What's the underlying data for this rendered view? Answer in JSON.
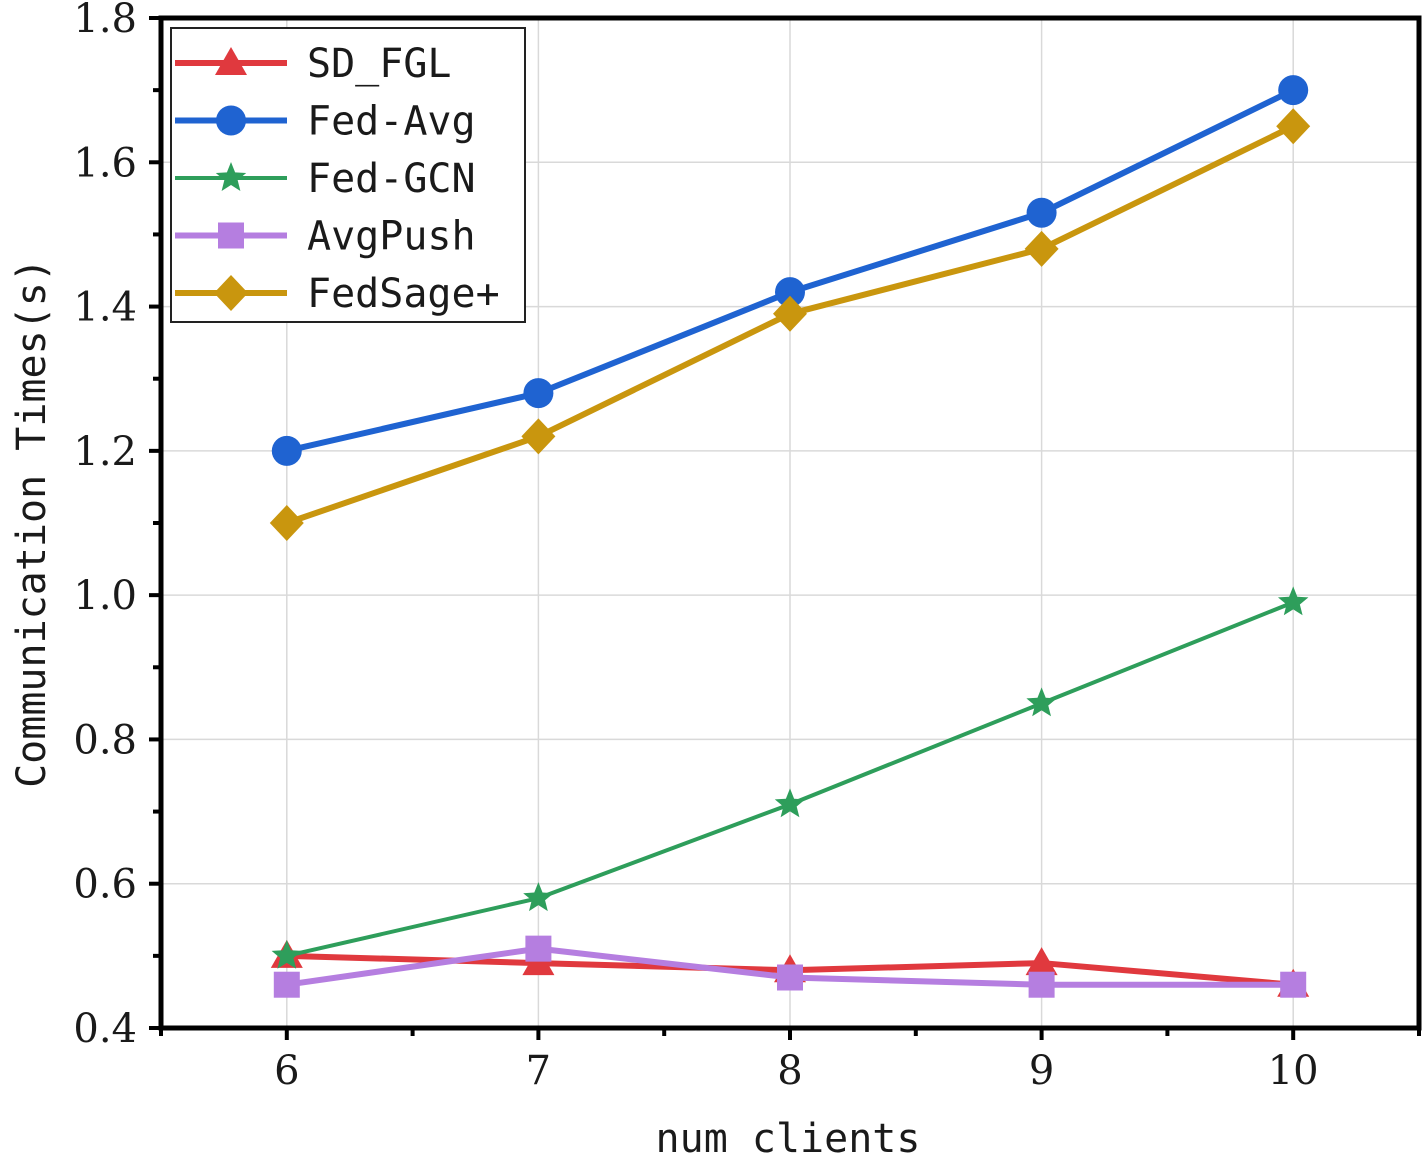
{
  "chart_data": {
    "type": "line",
    "xlabel": "num clients",
    "ylabel": "Communication Times(s)",
    "x": [
      6,
      7,
      8,
      9,
      10
    ],
    "x_tick_labels": [
      "6",
      "7",
      "8",
      "9",
      "10"
    ],
    "xlim": [
      5.5,
      10.5
    ],
    "ylim": [
      0.4,
      1.8
    ],
    "y_ticks": [
      0.4,
      0.6,
      0.8,
      1.0,
      1.2,
      1.4,
      1.6,
      1.8
    ],
    "y_tick_labels": [
      "0.4",
      "0.6",
      "0.8",
      "1.0",
      "1.2",
      "1.4",
      "1.6",
      "1.8"
    ],
    "grid": true,
    "legend_position": "top-left",
    "series": [
      {
        "name": "SD_FGL",
        "values": [
          0.5,
          0.49,
          0.48,
          0.49,
          0.46
        ],
        "color": "#e0393e",
        "marker": "triangle"
      },
      {
        "name": "Fed-Avg",
        "values": [
          1.2,
          1.28,
          1.42,
          1.53,
          1.7
        ],
        "color": "#1f63d1",
        "marker": "circle"
      },
      {
        "name": "Fed-GCN",
        "values": [
          0.5,
          0.58,
          0.71,
          0.85,
          0.99
        ],
        "color": "#2e9e5b",
        "marker": "star"
      },
      {
        "name": "AvgPush",
        "values": [
          0.46,
          0.51,
          0.47,
          0.46,
          0.46
        ],
        "color": "#b57ee0",
        "marker": "square"
      },
      {
        "name": "FedSage+",
        "values": [
          1.1,
          1.22,
          1.39,
          1.48,
          1.65
        ],
        "color": "#c9960e",
        "marker": "diamond"
      }
    ]
  }
}
